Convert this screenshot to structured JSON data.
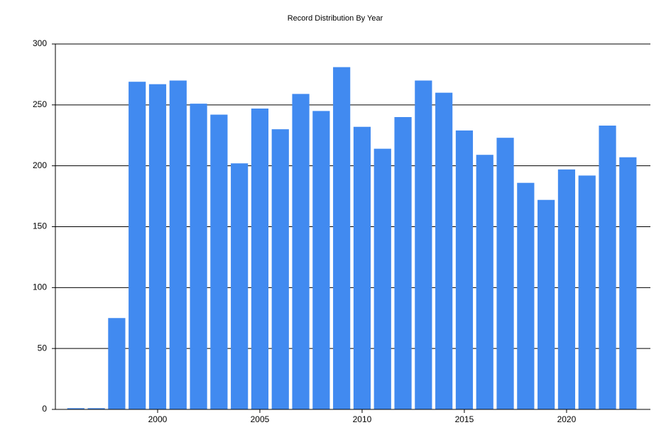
{
  "chart_data": {
    "type": "bar",
    "title": "Record Distribution By Year",
    "x": [
      1996,
      1997,
      1998,
      1999,
      2000,
      2001,
      2002,
      2003,
      2004,
      2005,
      2006,
      2007,
      2008,
      2009,
      2010,
      2011,
      2012,
      2013,
      2014,
      2015,
      2016,
      2017,
      2018,
      2019,
      2020,
      2021,
      2022,
      2023
    ],
    "values": [
      1,
      1,
      75,
      269,
      267,
      270,
      251,
      242,
      202,
      247,
      230,
      259,
      245,
      281,
      232,
      214,
      240,
      270,
      260,
      229,
      209,
      223,
      186,
      172,
      197,
      192,
      233,
      207
    ],
    "color": "#418af0",
    "xlim": [
      1995,
      2024.1
    ],
    "xticks": [
      2000,
      2005,
      2010,
      2015,
      2020
    ],
    "ylim": [
      0,
      300
    ],
    "yticks": [
      0,
      50,
      100,
      150,
      200,
      250,
      300
    ],
    "grid": true
  }
}
